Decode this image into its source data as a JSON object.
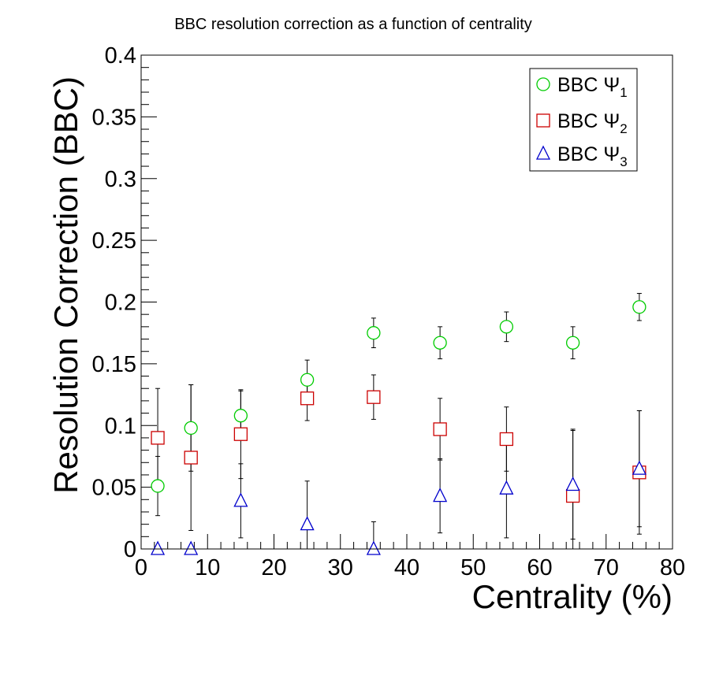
{
  "chart_data": {
    "type": "scatter",
    "title": "BBC resolution correction as a function of centrality",
    "xlabel": "Centrality (%)",
    "ylabel": "Resolution Correction (BBC)",
    "xlim": [
      0,
      80
    ],
    "ylim": [
      0,
      0.4
    ],
    "x_ticks": [
      "0",
      "10",
      "20",
      "30",
      "40",
      "50",
      "60",
      "70",
      "80"
    ],
    "y_ticks": [
      "0",
      "0.05",
      "0.1",
      "0.15",
      "0.2",
      "0.25",
      "0.3",
      "0.35",
      "0.4"
    ],
    "legend_position": "top-right",
    "series": [
      {
        "name": "BBC Ψ1",
        "label_main": "BBC Ψ",
        "label_sub": "1",
        "marker": "open-circle",
        "color": "#00cc00",
        "x": [
          2.5,
          7.5,
          15,
          25,
          35,
          45,
          55,
          65,
          75
        ],
        "y": [
          0.051,
          0.098,
          0.108,
          0.137,
          0.175,
          0.167,
          0.18,
          0.167,
          0.196
        ],
        "err": [
          0.024,
          0.035,
          0.02,
          0.016,
          0.012,
          0.013,
          0.012,
          0.013,
          0.011
        ]
      },
      {
        "name": "BBC Ψ2",
        "label_main": "BBC Ψ",
        "label_sub": "2",
        "marker": "open-square",
        "color": "#cc0000",
        "x": [
          2.5,
          7.5,
          15,
          25,
          35,
          45,
          55,
          65,
          75
        ],
        "y": [
          0.09,
          0.074,
          0.093,
          0.122,
          0.123,
          0.097,
          0.089,
          0.043,
          0.062
        ],
        "err": [
          0.04,
          0.059,
          0.036,
          0.018,
          0.018,
          0.025,
          0.026,
          0.054,
          0.05
        ]
      },
      {
        "name": "BBC Ψ3",
        "label_main": "BBC Ψ",
        "label_sub": "3",
        "marker": "open-triangle",
        "color": "#0000cc",
        "x": [
          2.5,
          7.5,
          15,
          25,
          35,
          45,
          55,
          65,
          75
        ],
        "y": [
          0,
          0,
          0.039,
          0.02,
          0,
          0.043,
          0.049,
          0.052,
          0.065
        ],
        "err": [
          0,
          0,
          0.03,
          0.035,
          0.022,
          0.03,
          0.04,
          0.044,
          0.047
        ]
      }
    ]
  }
}
